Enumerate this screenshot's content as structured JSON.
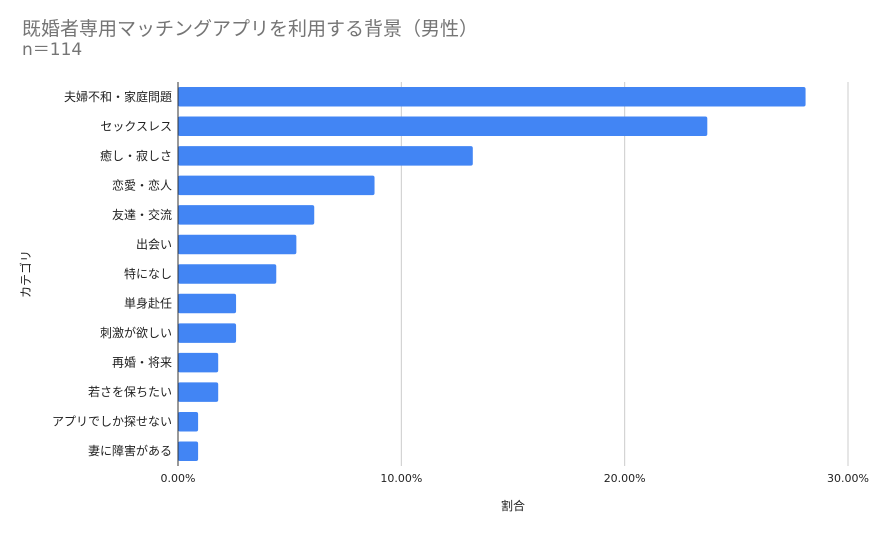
{
  "chart_data": {
    "type": "bar",
    "orientation": "horizontal",
    "title": "既婚者専用マッチングアプリを利用する背景（男性）",
    "subtitle": "n＝114",
    "xlabel": "割合",
    "ylabel": "カテゴリ",
    "xlim": [
      0,
      0.3
    ],
    "xticks": [
      0,
      0.1,
      0.2,
      0.3
    ],
    "xtick_labels": [
      "0.00%",
      "10.00%",
      "20.00%",
      "30.00%"
    ],
    "grid": true,
    "bar_color": "#4285f4",
    "categories": [
      "夫婦不和・家庭問題",
      "セックスレス",
      "癒し・寂しさ",
      "恋愛・恋人",
      "友達・交流",
      "出会い",
      "特になし",
      "単身赴任",
      "刺激が欲しい",
      "再婚・将来",
      "若さを保ちたい",
      "アプリでしか探せない",
      "妻に障害がある"
    ],
    "values": [
      0.281,
      0.237,
      0.132,
      0.088,
      0.061,
      0.053,
      0.044,
      0.026,
      0.026,
      0.018,
      0.018,
      0.009,
      0.009
    ]
  }
}
